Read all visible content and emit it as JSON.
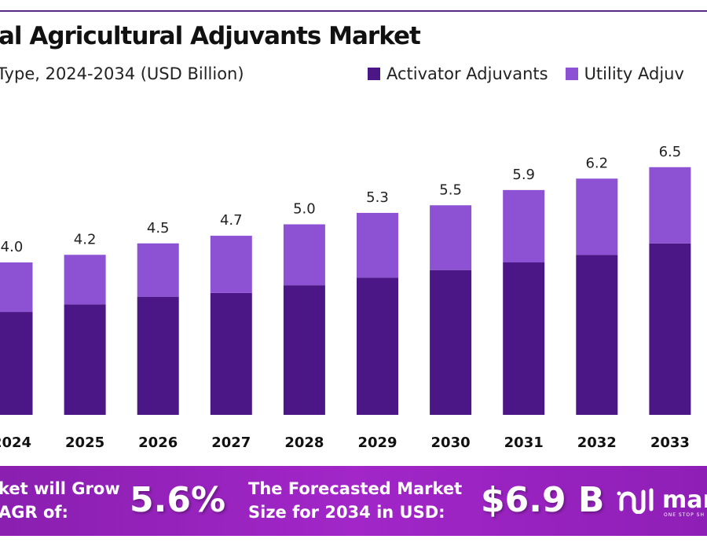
{
  "chart_data": {
    "type": "bar",
    "stacked": true,
    "title": "al Agricultural Adjuvants Market",
    "subtitle": "Type, 2024-2034 (USD Billion)",
    "categories": [
      "2024",
      "2025",
      "2026",
      "2027",
      "2028",
      "2029",
      "2030",
      "2031",
      "2032",
      "2033"
    ],
    "series": [
      {
        "name": "Activator Adjuvants",
        "color": "#4b1685",
        "values": [
          2.7,
          2.9,
          3.1,
          3.2,
          3.4,
          3.6,
          3.8,
          4.0,
          4.2,
          4.5
        ]
      },
      {
        "name": "Utility Adjuv",
        "color": "#8d52d4",
        "values": [
          1.3,
          1.3,
          1.4,
          1.5,
          1.6,
          1.7,
          1.7,
          1.9,
          2.0,
          2.0
        ]
      }
    ],
    "totals": [
      "4.0",
      "4.2",
      "4.5",
      "4.7",
      "5.0",
      "5.3",
      "5.5",
      "5.9",
      "6.2",
      "6.5"
    ],
    "grid": false,
    "legend": "top-right"
  },
  "banner": {
    "cagr_text_1": "ket will Grow",
    "cagr_text_2": "AGR of:",
    "cagr_value": "5.6%",
    "forecast_text_1": "The Forecasted Market",
    "forecast_text_2": "Size for 2034 in USD:",
    "forecast_value": "$6.9 B",
    "logo_text": "mar",
    "logo_tagline": "ONE STOP SH"
  }
}
